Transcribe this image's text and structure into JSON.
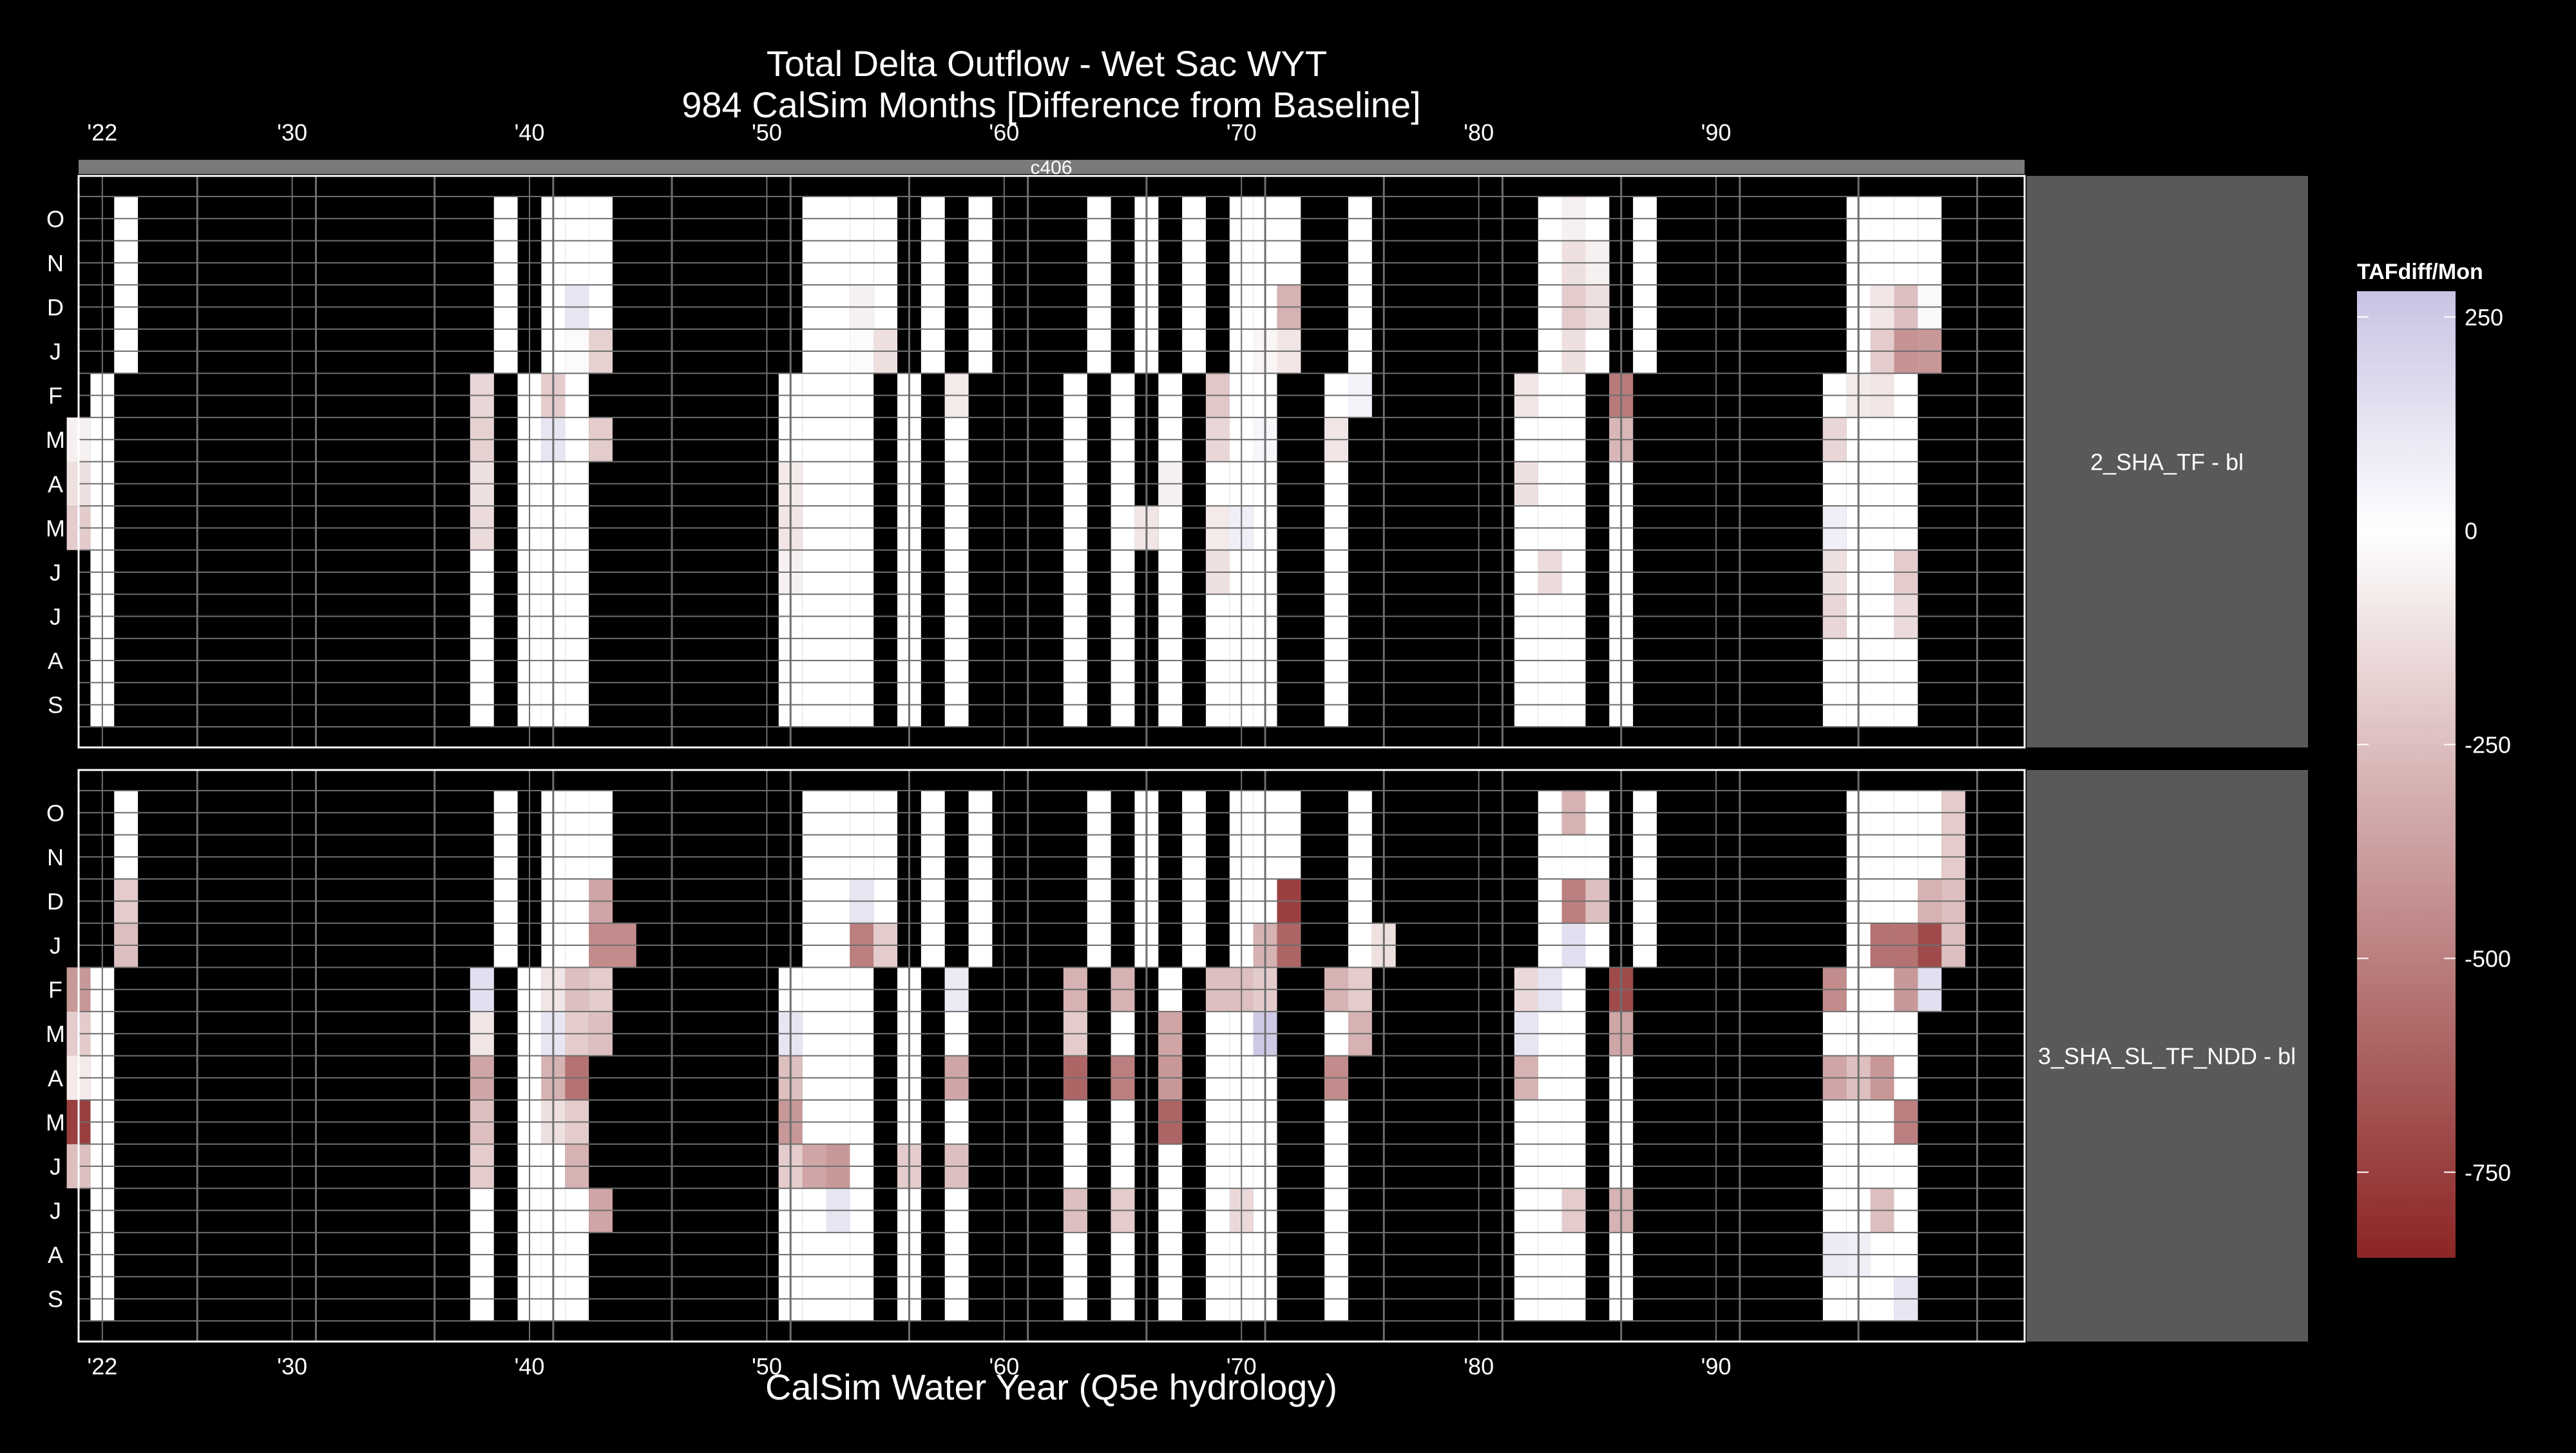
{
  "chart_data": {
    "type": "heatmap",
    "title": "Total Delta Outflow - Wet Sac WYT",
    "subtitle": "984 CalSim Months [Difference from Baseline]",
    "xlabel": "CalSim Water Year (Q5e hydrology)",
    "top_strip_label": "c406",
    "x_ticks": [
      "'22",
      "'30",
      "'40",
      "'50",
      "'60",
      "'70",
      "'80",
      "'90"
    ],
    "x_tick_years": [
      1922,
      1930,
      1940,
      1950,
      1960,
      1970,
      1980,
      1990
    ],
    "x_range": [
      1921,
      2003
    ],
    "months": [
      "O",
      "N",
      "D",
      "J",
      "F",
      "M",
      "A",
      "M",
      "J",
      "J",
      "A",
      "S"
    ],
    "color_scale": {
      "title": "TAFdiff/Mon",
      "ticks": [
        250,
        0,
        -250,
        -500,
        -750
      ],
      "limits": [
        -850,
        280
      ],
      "low_color": "#8B2525",
      "mid_color": "#FFFFFF",
      "high_color": "#C9C3E3"
    },
    "panels": [
      {
        "label": "2_SHA_TF - bl",
        "wet_years": [
          1922,
          1938,
          1940,
          1941,
          1942,
          1951,
          1952,
          1953,
          1954,
          1956,
          1958,
          1963,
          1965,
          1967,
          1969,
          1970,
          1971,
          1974,
          1982,
          1983,
          1984,
          1986,
          1995,
          1996,
          1997,
          1998
        ],
        "cells": [
          {
            "y": 1953,
            "m": 2,
            "v": -60
          },
          {
            "y": 1954,
            "m": 3,
            "v": -120
          },
          {
            "y": 1953,
            "m": 3,
            "v": 20
          },
          {
            "y": 1941,
            "m": 3,
            "v": -20
          },
          {
            "y": 1941,
            "m": 2,
            "v": 120
          },
          {
            "y": 1942,
            "m": 3,
            "v": -180
          },
          {
            "y": 1971,
            "m": 2,
            "v": -300
          },
          {
            "y": 1971,
            "m": 3,
            "v": -100
          },
          {
            "y": 1970,
            "m": 3,
            "v": -40
          },
          {
            "y": 1983,
            "m": 2,
            "v": -200
          },
          {
            "y": 1983,
            "m": 3,
            "v": -120
          },
          {
            "y": 1983,
            "m": 1,
            "v": -120
          },
          {
            "y": 1983,
            "m": 0,
            "v": -60
          },
          {
            "y": 1984,
            "m": 2,
            "v": -120
          },
          {
            "y": 1984,
            "m": 1,
            "v": -60
          },
          {
            "y": 1997,
            "m": 2,
            "v": -250
          },
          {
            "y": 1997,
            "m": 3,
            "v": -420
          },
          {
            "y": 1998,
            "m": 3,
            "v": -400
          },
          {
            "y": 1996,
            "m": 3,
            "v": -200
          },
          {
            "y": 1996,
            "m": 2,
            "v": -100
          },
          {
            "y": 1998,
            "m": 2,
            "v": 30
          },
          {
            "y": 1986,
            "m": 4,
            "v": -520
          },
          {
            "y": 1986,
            "m": 5,
            "v": -280
          },
          {
            "y": 1921,
            "m": 6,
            "v": -120
          },
          {
            "y": 1921,
            "m": 7,
            "v": -200
          },
          {
            "y": 1921,
            "m": 5,
            "v": -60
          },
          {
            "y": 1938,
            "m": 4,
            "v": -160
          },
          {
            "y": 1938,
            "m": 5,
            "v": -180
          },
          {
            "y": 1938,
            "m": 6,
            "v": -120
          },
          {
            "y": 1938,
            "m": 7,
            "v": -140
          },
          {
            "y": 1941,
            "m": 4,
            "v": -200
          },
          {
            "y": 1941,
            "m": 5,
            "v": 120
          },
          {
            "y": 1943,
            "m": 5,
            "v": -200
          },
          {
            "y": 1951,
            "m": 6,
            "v": -80
          },
          {
            "y": 1951,
            "m": 7,
            "v": -100
          },
          {
            "y": 1951,
            "m": 8,
            "v": -60
          },
          {
            "y": 1969,
            "m": 4,
            "v": -220
          },
          {
            "y": 1969,
            "m": 5,
            "v": -160
          },
          {
            "y": 1969,
            "m": 7,
            "v": -80
          },
          {
            "y": 1969,
            "m": 8,
            "v": -120
          },
          {
            "y": 1970,
            "m": 7,
            "v": 80
          },
          {
            "y": 1971,
            "m": 5,
            "v": 40
          },
          {
            "y": 1974,
            "m": 5,
            "v": -100
          },
          {
            "y": 1975,
            "m": 4,
            "v": 60
          },
          {
            "y": 1982,
            "m": 4,
            "v": -100
          },
          {
            "y": 1982,
            "m": 6,
            "v": -120
          },
          {
            "y": 1983,
            "m": 8,
            "v": -140
          },
          {
            "y": 1995,
            "m": 5,
            "v": -160
          },
          {
            "y": 1995,
            "m": 7,
            "v": 80
          },
          {
            "y": 1995,
            "m": 8,
            "v": -120
          },
          {
            "y": 1995,
            "m": 9,
            "v": -160
          },
          {
            "y": 1996,
            "m": 4,
            "v": -80
          },
          {
            "y": 1997,
            "m": 4,
            "v": -100
          },
          {
            "y": 1998,
            "m": 8,
            "v": -200
          },
          {
            "y": 1998,
            "m": 9,
            "v": -140
          },
          {
            "y": 1966,
            "m": 7,
            "v": -100
          },
          {
            "y": 1967,
            "m": 6,
            "v": -60
          },
          {
            "y": 1958,
            "m": 4,
            "v": -80
          }
        ]
      },
      {
        "label": "3_SHA_SL_TF_NDD - bl",
        "wet_years": [
          1922,
          1938,
          1940,
          1941,
          1942,
          1951,
          1952,
          1953,
          1954,
          1956,
          1958,
          1963,
          1965,
          1967,
          1969,
          1970,
          1971,
          1974,
          1982,
          1983,
          1984,
          1986,
          1995,
          1996,
          1997,
          1998
        ],
        "cells": [
          {
            "y": 1922,
            "m": 2,
            "v": -200
          },
          {
            "y": 1922,
            "m": 3,
            "v": -250
          },
          {
            "y": 1921,
            "m": 4,
            "v": -400
          },
          {
            "y": 1921,
            "m": 5,
            "v": -200
          },
          {
            "y": 1921,
            "m": 6,
            "v": -80
          },
          {
            "y": 1921,
            "m": 7,
            "v": -750
          },
          {
            "y": 1921,
            "m": 8,
            "v": -250
          },
          {
            "y": 1938,
            "m": 4,
            "v": 150
          },
          {
            "y": 1938,
            "m": 5,
            "v": -100
          },
          {
            "y": 1938,
            "m": 6,
            "v": -350
          },
          {
            "y": 1938,
            "m": 7,
            "v": -250
          },
          {
            "y": 1938,
            "m": 8,
            "v": -200
          },
          {
            "y": 1941,
            "m": 5,
            "v": 120
          },
          {
            "y": 1941,
            "m": 6,
            "v": -300
          },
          {
            "y": 1941,
            "m": 7,
            "v": -120
          },
          {
            "y": 1942,
            "m": 2,
            "v": -350
          },
          {
            "y": 1942,
            "m": 3,
            "v": -450
          },
          {
            "y": 1942,
            "m": 4,
            "v": -250
          },
          {
            "y": 1942,
            "m": 5,
            "v": -200
          },
          {
            "y": 1942,
            "m": 6,
            "v": -550
          },
          {
            "y": 1942,
            "m": 7,
            "v": -200
          },
          {
            "y": 1942,
            "m": 8,
            "v": -300
          },
          {
            "y": 1943,
            "m": 3,
            "v": -450
          },
          {
            "y": 1943,
            "m": 4,
            "v": -200
          },
          {
            "y": 1943,
            "m": 9,
            "v": -350
          },
          {
            "y": 1943,
            "m": 5,
            "v": -250
          },
          {
            "y": 1941,
            "m": 4,
            "v": -100
          },
          {
            "y": 1953,
            "m": 2,
            "v": 120
          },
          {
            "y": 1953,
            "m": 3,
            "v": -500
          },
          {
            "y": 1953,
            "m": 8,
            "v": -400
          },
          {
            "y": 1953,
            "m": 9,
            "v": 120
          },
          {
            "y": 1951,
            "m": 5,
            "v": 120
          },
          {
            "y": 1951,
            "m": 6,
            "v": -250
          },
          {
            "y": 1951,
            "m": 7,
            "v": -400
          },
          {
            "y": 1951,
            "m": 8,
            "v": -200
          },
          {
            "y": 1952,
            "m": 8,
            "v": -350
          },
          {
            "y": 1954,
            "m": 3,
            "v": -200
          },
          {
            "y": 1956,
            "m": 8,
            "v": -200
          },
          {
            "y": 1958,
            "m": 4,
            "v": 100
          },
          {
            "y": 1958,
            "m": 6,
            "v": -350
          },
          {
            "y": 1958,
            "m": 8,
            "v": -250
          },
          {
            "y": 1963,
            "m": 4,
            "v": -300
          },
          {
            "y": 1963,
            "m": 5,
            "v": -200
          },
          {
            "y": 1963,
            "m": 6,
            "v": -600
          },
          {
            "y": 1963,
            "m": 9,
            "v": -250
          },
          {
            "y": 1965,
            "m": 4,
            "v": -300
          },
          {
            "y": 1965,
            "m": 6,
            "v": -500
          },
          {
            "y": 1965,
            "m": 9,
            "v": -200
          },
          {
            "y": 1967,
            "m": 6,
            "v": -400
          },
          {
            "y": 1967,
            "m": 7,
            "v": -600
          },
          {
            "y": 1967,
            "m": 5,
            "v": -350
          },
          {
            "y": 1969,
            "m": 4,
            "v": -250
          },
          {
            "y": 1970,
            "m": 3,
            "v": -300
          },
          {
            "y": 1970,
            "m": 4,
            "v": -250
          },
          {
            "y": 1970,
            "m": 9,
            "v": -150
          },
          {
            "y": 1971,
            "m": 2,
            "v": -750
          },
          {
            "y": 1971,
            "m": 3,
            "v": -600
          },
          {
            "y": 1971,
            "m": 5,
            "v": 250
          },
          {
            "y": 1971,
            "m": 4,
            "v": -200
          },
          {
            "y": 1974,
            "m": 4,
            "v": -300
          },
          {
            "y": 1974,
            "m": 6,
            "v": -450
          },
          {
            "y": 1975,
            "m": 5,
            "v": -300
          },
          {
            "y": 1975,
            "m": 3,
            "v": -120
          },
          {
            "y": 1975,
            "m": 4,
            "v": -200
          },
          {
            "y": 1982,
            "m": 4,
            "v": -150
          },
          {
            "y": 1982,
            "m": 5,
            "v": 120
          },
          {
            "y": 1982,
            "m": 6,
            "v": -300
          },
          {
            "y": 1983,
            "m": 2,
            "v": -500
          },
          {
            "y": 1983,
            "m": 3,
            "v": 150
          },
          {
            "y": 1983,
            "m": 4,
            "v": 120
          },
          {
            "y": 1983,
            "m": 0,
            "v": -300
          },
          {
            "y": 1984,
            "m": 9,
            "v": -200
          },
          {
            "y": 1984,
            "m": 2,
            "v": -250
          },
          {
            "y": 1986,
            "m": 4,
            "v": -700
          },
          {
            "y": 1986,
            "m": 5,
            "v": -350
          },
          {
            "y": 1986,
            "m": 9,
            "v": -300
          },
          {
            "y": 1995,
            "m": 4,
            "v": -450
          },
          {
            "y": 1995,
            "m": 6,
            "v": -350
          },
          {
            "y": 1996,
            "m": 3,
            "v": -550
          },
          {
            "y": 1996,
            "m": 6,
            "v": -250
          },
          {
            "y": 1997,
            "m": 3,
            "v": -550
          },
          {
            "y": 1997,
            "m": 6,
            "v": -400
          },
          {
            "y": 1998,
            "m": 3,
            "v": -700
          },
          {
            "y": 1998,
            "m": 2,
            "v": -300
          },
          {
            "y": 1998,
            "m": 7,
            "v": -500
          },
          {
            "y": 1998,
            "m": 4,
            "v": -400
          },
          {
            "y": 1999,
            "m": 4,
            "v": 150
          },
          {
            "y": 1999,
            "m": 2,
            "v": -250
          },
          {
            "y": 1999,
            "m": 0,
            "v": -200
          },
          {
            "y": 1999,
            "m": 1,
            "v": -200
          },
          {
            "y": 1999,
            "m": 3,
            "v": -250
          },
          {
            "y": 1995,
            "m": 10,
            "v": 100
          },
          {
            "y": 1996,
            "m": 10,
            "v": 80
          },
          {
            "y": 1998,
            "m": 11,
            "v": 120
          },
          {
            "y": 1997,
            "m": 9,
            "v": -250
          }
        ]
      }
    ]
  }
}
